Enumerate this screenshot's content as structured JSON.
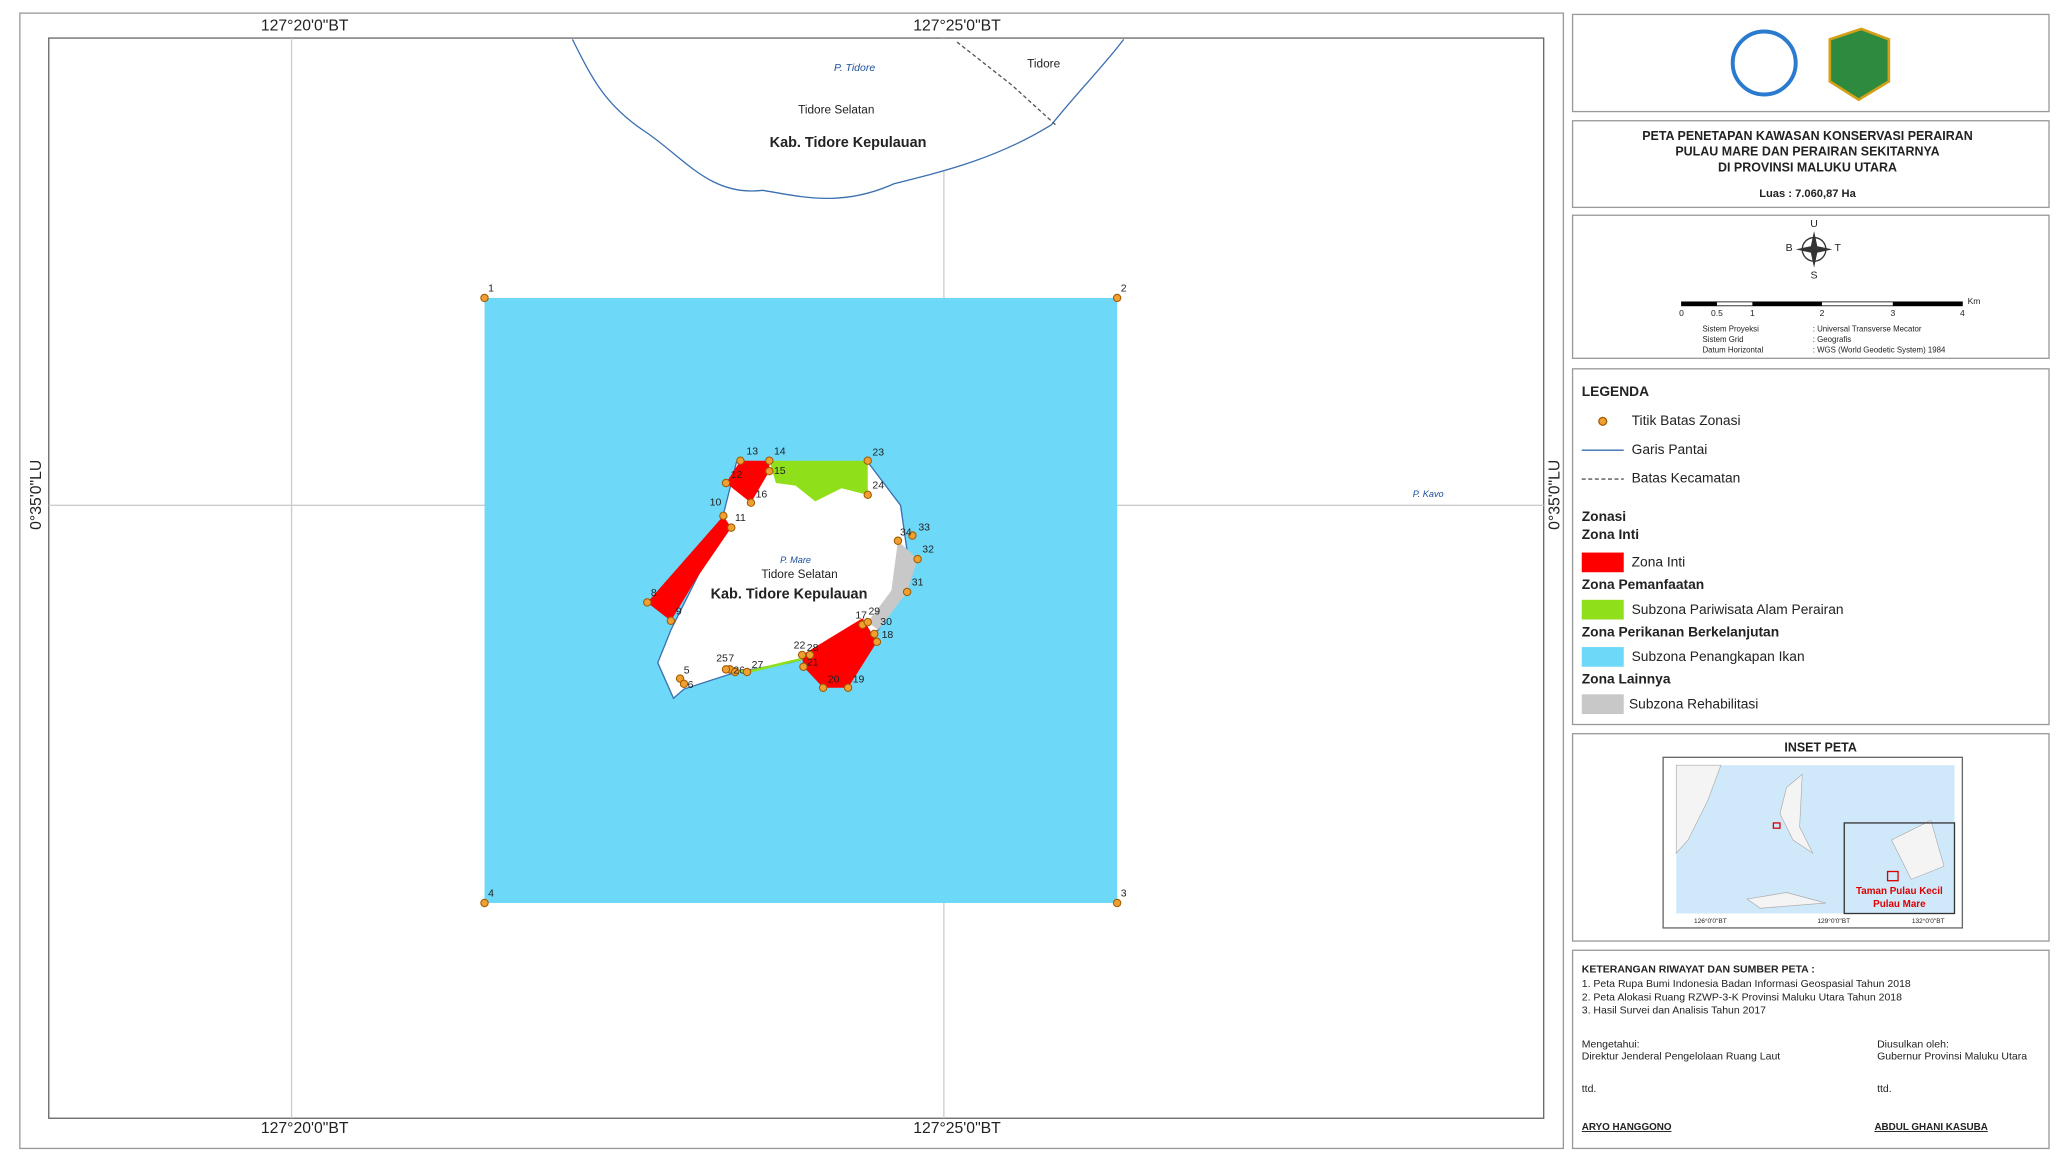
{
  "map": {
    "grid_labels": {
      "lon_left": "127°20'0\"BT",
      "lon_right": "127°25'0\"BT",
      "lat": "0°35'0\"LU"
    },
    "places": {
      "p_tidore": "P. Tidore",
      "tidore": "Tidore",
      "tidore_selatan_north": "Tidore Selatan",
      "kab_north": "Kab. Tidore Kepulauan",
      "p_mare": "P. Mare",
      "tidore_selatan_mare": "Tidore Selatan",
      "kab_mare": "Kab. Tidore Kepulauan",
      "p_kavo": "P. Kavo"
    },
    "boundary_points": [
      "1",
      "2",
      "3",
      "4",
      "5",
      "6",
      "7",
      "8",
      "9",
      "10",
      "11",
      "12",
      "13",
      "14",
      "15",
      "16",
      "17",
      "18",
      "19",
      "20",
      "21",
      "22",
      "23",
      "24",
      "25",
      "26",
      "27",
      "28",
      "29",
      "30",
      "31",
      "32",
      "33",
      "34"
    ]
  },
  "panel": {
    "title": [
      "PETA PENETAPAN KAWASAN KONSERVASI PERAIRAN",
      "PULAU MARE DAN PERAIRAN SEKITARNYA",
      "DI PROVINSI MALUKU UTARA"
    ],
    "area": "Luas : 7.060,87 Ha",
    "compass": {
      "n": "U",
      "w": "B",
      "e": "T",
      "s": "S"
    },
    "scale": {
      "ticks": [
        "0",
        "0.5",
        "1",
        "2",
        "3",
        "4"
      ],
      "unit": "Km"
    },
    "projection": [
      [
        "Sistem Proyeksi",
        ": Universal Transverse Mecator"
      ],
      [
        "Sistem Grid",
        ": Geografis"
      ],
      [
        "Datum Horizontal",
        ": WGS (World Geodetic System) 1984"
      ]
    ],
    "legend": {
      "title": "LEGENDA",
      "point": "Titik Batas Zonasi",
      "coast": "Garis Pantai",
      "district": "Batas Kecamatan",
      "zonasi": "Zonasi",
      "inti_head": "Zona Inti",
      "inti": "Zona Inti",
      "pemanfaatan_head": "Zona Pemanfaatan",
      "pariwisata": "Subzona Pariwisata Alam Perairan",
      "perikanan_head": "Zona Perikanan Berkelanjutan",
      "penangkapan": "Subzona Penangkapan Ikan",
      "lainnya_head": "Zona Lainnya",
      "rehabilitasi": "Subzona Rehabilitasi"
    },
    "inset": {
      "title": "INSET PETA",
      "label": [
        "Taman Pulau Kecil",
        "Pulau Mare"
      ],
      "xlabels": [
        "126°0'0\"BT",
        "129°0'0\"BT",
        "132°0'0\"BT"
      ]
    },
    "sources": {
      "title": "KETERANGAN RIWAYAT DAN SUMBER PETA :",
      "items": [
        "1. Peta Rupa Bumi Indonesia Badan Informasi Geospasial Tahun 2018",
        "2. Peta Alokasi Ruang RZWP-3-K Provinsi Maluku Utara Tahun 2018",
        "3. Hasil Survei dan Analisis Tahun 2017"
      ]
    },
    "sign": {
      "left": [
        "Mengetahui:",
        "Direktur Jenderal Pengelolaan Ruang Laut",
        "ttd.",
        "ARYO HANGGONO"
      ],
      "right": [
        "Diusulkan oleh:",
        "Gubernur Provinsi Maluku Utara",
        "ttd.",
        "ABDUL GHANI KASUBA"
      ]
    }
  }
}
